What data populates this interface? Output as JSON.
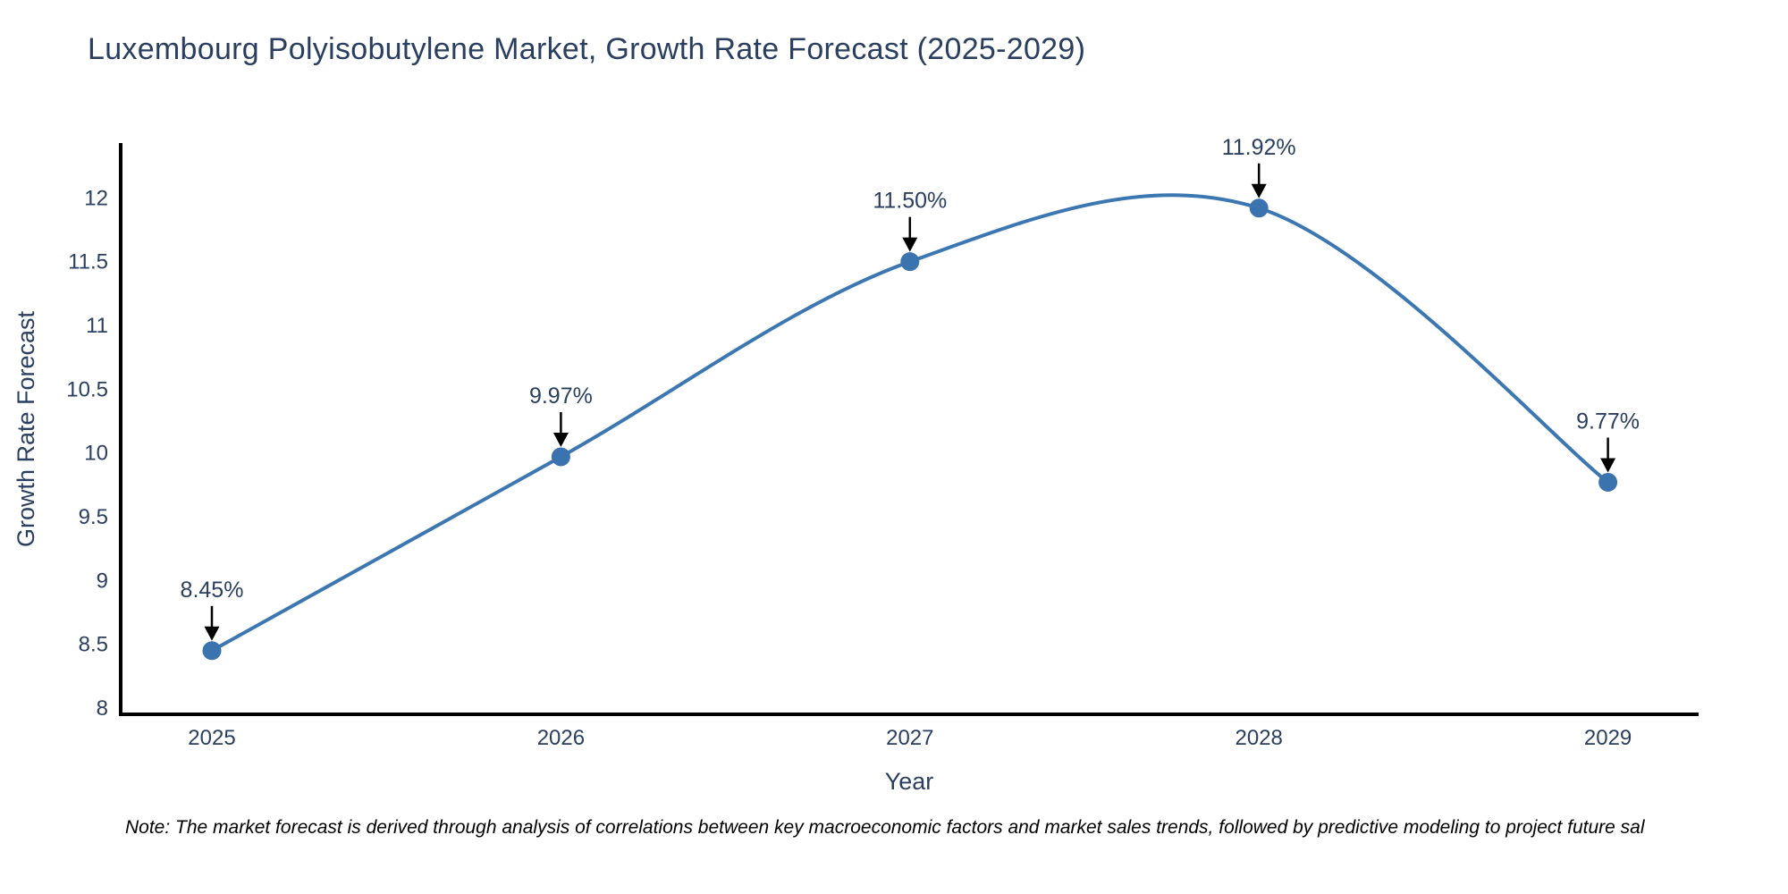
{
  "chart_data": {
    "type": "line",
    "title": "Luxembourg Polyisobutylene Market, Growth Rate Forecast (2025-2029)",
    "xlabel": "Year",
    "ylabel": "Growth Rate Forecast",
    "x": [
      2025,
      2026,
      2027,
      2028,
      2029
    ],
    "xtick_labels": [
      "2025",
      "2026",
      "2027",
      "2028",
      "2029"
    ],
    "values": [
      8.45,
      9.97,
      11.5,
      11.92,
      9.77
    ],
    "point_labels": [
      "8.45%",
      "9.97%",
      "11.50%",
      "11.92%",
      "9.77%"
    ],
    "yticks": [
      8,
      8.5,
      9,
      9.5,
      10,
      10.5,
      11,
      11.5,
      12
    ],
    "ytick_labels": [
      "8",
      "8.5",
      "9",
      "9.5",
      "10",
      "10.5",
      "11",
      "11.5",
      "12"
    ],
    "ylim": [
      8,
      12.43
    ],
    "grid": false,
    "legend": "none",
    "line_shape": "spline",
    "note": "Note: The market forecast is derived through analysis of correlations between key macroeconomic factors and market sales trends, followed by predictive modeling to project future sal",
    "colors": {
      "line": "#3c77b2",
      "marker": "#3a73ad",
      "axis": "#000000",
      "text": "#2a3f5f",
      "annotation_arrow": "#000000",
      "note_text": "#000000",
      "background": "#ffffff"
    }
  }
}
